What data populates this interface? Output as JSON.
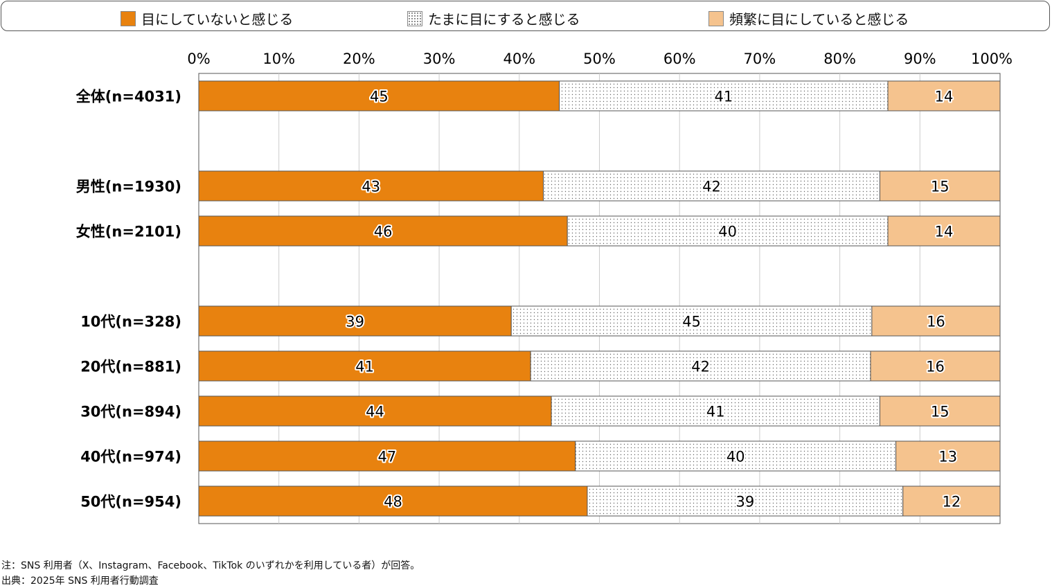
{
  "chart_data": {
    "type": "bar",
    "orientation": "horizontal",
    "stacked": true,
    "legend_placement": "top",
    "xlim": [
      0,
      100
    ],
    "x_ticks": [
      "0%",
      "10%",
      "20%",
      "30%",
      "40%",
      "50%",
      "60%",
      "70%",
      "80%",
      "90%",
      "100%"
    ],
    "categories": [
      "全体(n=4031)",
      "男性(n=1930)",
      "女性(n=2101)",
      "10代(n=328)",
      "20代(n=881)",
      "30代(n=894)",
      "40代(n=974)",
      "50代(n=954)"
    ],
    "series": [
      {
        "name": "目にしていないと感じる",
        "color": "#e8820f",
        "pattern": "solid",
        "values": [
          45,
          43,
          46,
          39,
          41,
          44,
          47,
          48
        ]
      },
      {
        "name": "たまに目にすると感じる",
        "color": "#ffffff",
        "pattern": "dots",
        "values": [
          41,
          42,
          40,
          45,
          42,
          41,
          40,
          39
        ]
      },
      {
        "name": "頻繁に目にしていると感じる",
        "color": "#f5c38e",
        "pattern": "solid",
        "values": [
          14,
          15,
          14,
          16,
          16,
          15,
          13,
          12
        ]
      }
    ]
  },
  "notes": {
    "note": "注：SNS 利用者（X、Instagram、Facebook、TikTok のいずれかを利用している者）が回答。",
    "source": "出典：2025年 SNS 利用者行動調査"
  }
}
